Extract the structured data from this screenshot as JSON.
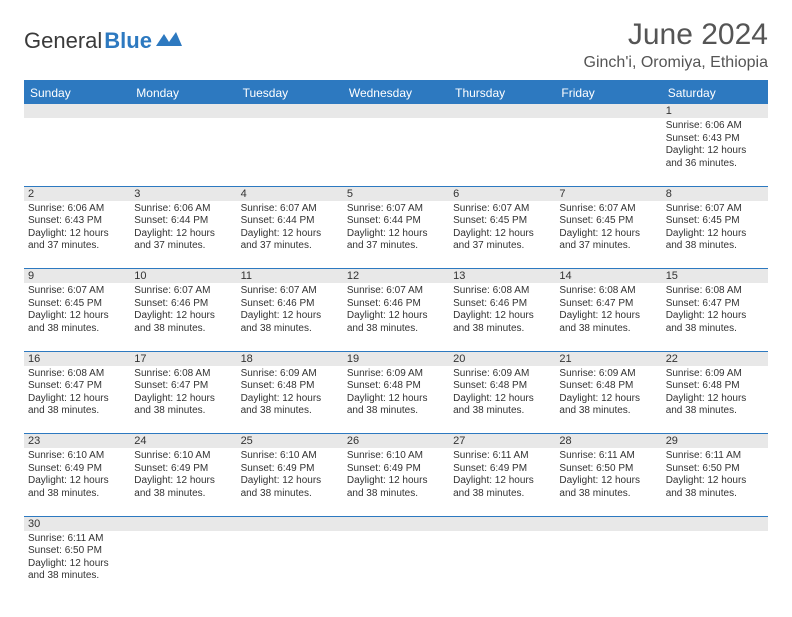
{
  "brand": {
    "part1": "General",
    "part2": "Blue"
  },
  "title": "June 2024",
  "location": "Ginch'i, Oromiya, Ethiopia",
  "colors": {
    "accent": "#2d79c0",
    "header_bg": "#2d79c0",
    "header_text": "#ffffff",
    "daynum_bg": "#e8e8e8",
    "text": "#333333",
    "title_text": "#555555",
    "bg": "#ffffff"
  },
  "day_names": [
    "Sunday",
    "Monday",
    "Tuesday",
    "Wednesday",
    "Thursday",
    "Friday",
    "Saturday"
  ],
  "weeks": [
    [
      null,
      null,
      null,
      null,
      null,
      null,
      {
        "n": "1",
        "sr": "6:06 AM",
        "ss": "6:43 PM",
        "dl": "12 hours and 36 minutes."
      }
    ],
    [
      {
        "n": "2",
        "sr": "6:06 AM",
        "ss": "6:43 PM",
        "dl": "12 hours and 37 minutes."
      },
      {
        "n": "3",
        "sr": "6:06 AM",
        "ss": "6:44 PM",
        "dl": "12 hours and 37 minutes."
      },
      {
        "n": "4",
        "sr": "6:07 AM",
        "ss": "6:44 PM",
        "dl": "12 hours and 37 minutes."
      },
      {
        "n": "5",
        "sr": "6:07 AM",
        "ss": "6:44 PM",
        "dl": "12 hours and 37 minutes."
      },
      {
        "n": "6",
        "sr": "6:07 AM",
        "ss": "6:45 PM",
        "dl": "12 hours and 37 minutes."
      },
      {
        "n": "7",
        "sr": "6:07 AM",
        "ss": "6:45 PM",
        "dl": "12 hours and 37 minutes."
      },
      {
        "n": "8",
        "sr": "6:07 AM",
        "ss": "6:45 PM",
        "dl": "12 hours and 38 minutes."
      }
    ],
    [
      {
        "n": "9",
        "sr": "6:07 AM",
        "ss": "6:45 PM",
        "dl": "12 hours and 38 minutes."
      },
      {
        "n": "10",
        "sr": "6:07 AM",
        "ss": "6:46 PM",
        "dl": "12 hours and 38 minutes."
      },
      {
        "n": "11",
        "sr": "6:07 AM",
        "ss": "6:46 PM",
        "dl": "12 hours and 38 minutes."
      },
      {
        "n": "12",
        "sr": "6:07 AM",
        "ss": "6:46 PM",
        "dl": "12 hours and 38 minutes."
      },
      {
        "n": "13",
        "sr": "6:08 AM",
        "ss": "6:46 PM",
        "dl": "12 hours and 38 minutes."
      },
      {
        "n": "14",
        "sr": "6:08 AM",
        "ss": "6:47 PM",
        "dl": "12 hours and 38 minutes."
      },
      {
        "n": "15",
        "sr": "6:08 AM",
        "ss": "6:47 PM",
        "dl": "12 hours and 38 minutes."
      }
    ],
    [
      {
        "n": "16",
        "sr": "6:08 AM",
        "ss": "6:47 PM",
        "dl": "12 hours and 38 minutes."
      },
      {
        "n": "17",
        "sr": "6:08 AM",
        "ss": "6:47 PM",
        "dl": "12 hours and 38 minutes."
      },
      {
        "n": "18",
        "sr": "6:09 AM",
        "ss": "6:48 PM",
        "dl": "12 hours and 38 minutes."
      },
      {
        "n": "19",
        "sr": "6:09 AM",
        "ss": "6:48 PM",
        "dl": "12 hours and 38 minutes."
      },
      {
        "n": "20",
        "sr": "6:09 AM",
        "ss": "6:48 PM",
        "dl": "12 hours and 38 minutes."
      },
      {
        "n": "21",
        "sr": "6:09 AM",
        "ss": "6:48 PM",
        "dl": "12 hours and 38 minutes."
      },
      {
        "n": "22",
        "sr": "6:09 AM",
        "ss": "6:48 PM",
        "dl": "12 hours and 38 minutes."
      }
    ],
    [
      {
        "n": "23",
        "sr": "6:10 AM",
        "ss": "6:49 PM",
        "dl": "12 hours and 38 minutes."
      },
      {
        "n": "24",
        "sr": "6:10 AM",
        "ss": "6:49 PM",
        "dl": "12 hours and 38 minutes."
      },
      {
        "n": "25",
        "sr": "6:10 AM",
        "ss": "6:49 PM",
        "dl": "12 hours and 38 minutes."
      },
      {
        "n": "26",
        "sr": "6:10 AM",
        "ss": "6:49 PM",
        "dl": "12 hours and 38 minutes."
      },
      {
        "n": "27",
        "sr": "6:11 AM",
        "ss": "6:49 PM",
        "dl": "12 hours and 38 minutes."
      },
      {
        "n": "28",
        "sr": "6:11 AM",
        "ss": "6:50 PM",
        "dl": "12 hours and 38 minutes."
      },
      {
        "n": "29",
        "sr": "6:11 AM",
        "ss": "6:50 PM",
        "dl": "12 hours and 38 minutes."
      }
    ],
    [
      {
        "n": "30",
        "sr": "6:11 AM",
        "ss": "6:50 PM",
        "dl": "12 hours and 38 minutes."
      },
      null,
      null,
      null,
      null,
      null,
      null
    ]
  ],
  "labels": {
    "sunrise": "Sunrise:",
    "sunset": "Sunset:",
    "daylight": "Daylight:"
  }
}
